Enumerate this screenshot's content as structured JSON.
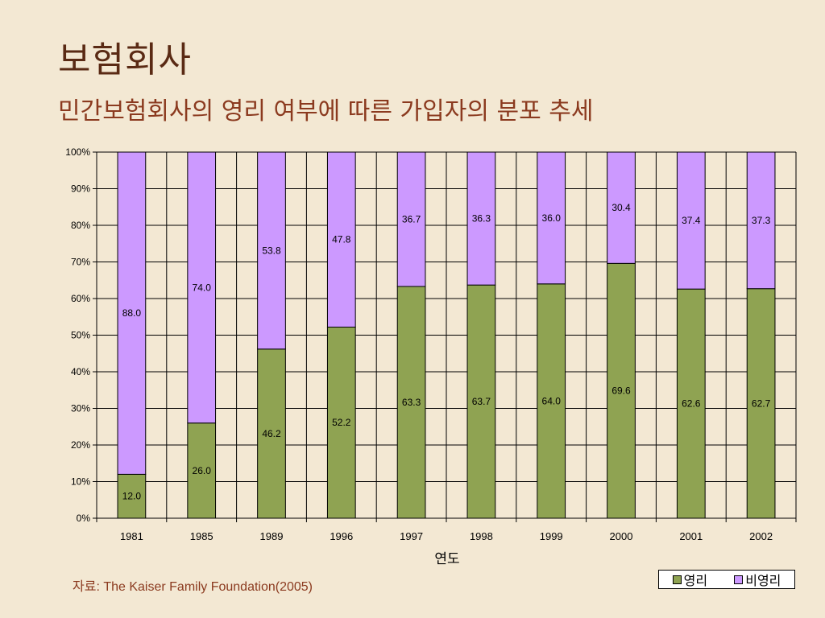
{
  "slide": {
    "title": "보험회사",
    "subtitle": "민간보험회사의 영리 여부에 따른 가입자의 분포 추세",
    "source": "자료: The Kaiser Family Foundation(2005)"
  },
  "colors": {
    "background": "#f3e8d3",
    "profit": "#8fa352",
    "nonprofit": "#cc99ff",
    "title": "#5a2a14",
    "subtitle": "#8b3a1f"
  },
  "chart_data": {
    "type": "bar",
    "stacked": "percent",
    "categories": [
      "1981",
      "1985",
      "1989",
      "1996",
      "1997",
      "1998",
      "1999",
      "2000",
      "2001",
      "2002"
    ],
    "series": [
      {
        "name": "영리",
        "color": "#8fa352",
        "values": [
          12.0,
          26.0,
          46.2,
          52.2,
          63.3,
          63.7,
          64.0,
          69.6,
          62.6,
          62.7
        ]
      },
      {
        "name": "비영리",
        "color": "#cc99ff",
        "values": [
          88.0,
          74.0,
          53.8,
          47.8,
          36.7,
          36.3,
          36.0,
          30.4,
          37.4,
          37.3
        ]
      }
    ],
    "title": "",
    "xlabel": "연도",
    "ylabel": "",
    "ylim": [
      0,
      100
    ],
    "yticks": [
      "0%",
      "10%",
      "20%",
      "30%",
      "40%",
      "50%",
      "60%",
      "70%",
      "80%",
      "90%",
      "100%"
    ],
    "grid": true,
    "legend": "bottom-right"
  }
}
